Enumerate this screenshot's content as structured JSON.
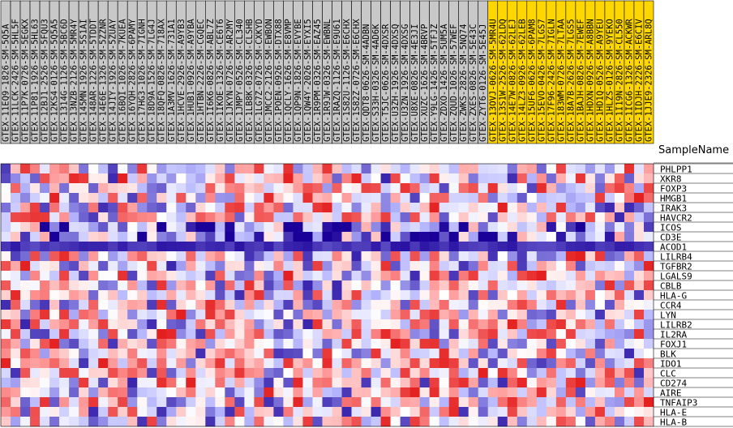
{
  "chart_data": {
    "type": "heatmap",
    "column_axis_label": "SampleName",
    "columns": [
      "GTEX-11EQ9-1826-SM-5Q5A",
      "GTEX-11LCK-2426-SM-5HL5F",
      "GTEX-11P7K-0726-SM-5EGKX",
      "GTEX-11P81-1926-SM-5HL63",
      "GTEX-12BJ1-2526-SM-5FQU3",
      "GTEX-12KS4-0126-SM-5Q5A5",
      "GTEX-1314G-1126-SM-5BC6D",
      "GTEX-13NZB-2126-SM-5MR4Y",
      "GTEX-145MN-1926-SM-5S1AI",
      "GTEX-148AR-1226-SM-5TDDT",
      "GTEX-14E6E-1326-SM-5ZZNR",
      "GTEX-14JIY-1926-SM-5ZUAY",
      "GTEX-16BQI-1026-SM-7KUEA",
      "GTEX-16YQH-2826-SM-6PAMY",
      "GTEX-17HG3-1026-SM-7IGNH",
      "GTEX-18D9A-1526-SM-7LG4J",
      "GTEX-18QFQ-0826-SM-718AX",
      "GTEX-1A3MV-1626-SM-731A1",
      "GTEX-1HCVE-2926-SM-A9YB3",
      "GTEX-1HUB1-0926-SM-A9YBA",
      "GTEX-1HTBN-2226-SM-CGQEC",
      "GTEX-1I6K6-0826-SM-ABL7Z",
      "GTEX-1IKOE-1326-SM-CE6T6",
      "GTEX-1JKYN-0726-SM-AR2MY",
      "GTEX-1JMPY-0526-SM-CL340",
      "GTEX-1LB8K-0326-SM-CLSHB",
      "GTEX-1LG7Z-0726-SM-CXKYD",
      "GTEX-1MCC2-2126-SM-EWBON",
      "GTEX-1POEN-0926-SM-DTX88",
      "GTEX-1QCLY-1626-SM-E8VMP",
      "GTEX-1QP9N-1826-SM-EVYBE",
      "GTEX-1QW4Y-2026-SM-EYXI5",
      "GTEX-1R9PM-0326-SM-EAZ45",
      "GTEX-1R9JW-0326-SM-EWBNL",
      "GTEX-1RAZQ-1126-SM-E9U61",
      "GTEX-1S82U-1126-SM-E6CHX",
      "GTEX-1S82Z-0726-SM-E6CHX",
      "GTEX-QDT8-0626-SM-4ADBN",
      "GTEX-S33H-0326-SM-4AD6K",
      "GTEX-T5JC-0626-SM-4DXSR",
      "GTEX-U3ZH-1926-SM-4DXSQ",
      "GTEX-U3ZN-1926-SM-4DXSG",
      "GTEX-U8XE-0826-SM-4E3JI",
      "GTEX-XUZC-1626-SM-4BRVP",
      "GTEX-Y9LG-1426-SM-5TFJZ",
      "GTEX-ZDXO-1426-SM-5UM5A",
      "GTEX-ZQUD-1026-SM-57WEF",
      "GTEX-ZWKS-2826-SM-5NQ74",
      "GTEX-ZXES-0826-SM-5E43C",
      "GTEX-ZYT6-0126-SM-5E45J",
      "GTEX-13OVJ-0626-SM-5MR4U",
      "GTEX-13S1W-2526-SM-62LDQ",
      "GTEX-14E7W-0826-SM-62LEJ",
      "GTEX-14LZ3-0926-SM-62LEB",
      "GTEX-15UF6-0626-SM-6PAM8",
      "GTEX-15EVO-0426-SM-7LGS7",
      "GTEX-17F96-2426-SM-7IGLN",
      "GTEX-183WM-0726-SM-7LTAA",
      "GTEX-18A7B-2626-SM-7LGS5",
      "GTEX-1BAJH-0826-SM-7EWEF",
      "GTEX-1HDXN-0926-SM-A8BBN",
      "GTEX-1HD1Q-0526-SM-A9YEU",
      "GTEX-1HLZS-0126-SM-9YEKO",
      "GTEX-1I19N-2826-SM-CL550",
      "GTEX-1ICG6-1326-SM-ACKWR",
      "GTEX-1IDJH-2226-SM-E6CIV",
      "GTEX-1JJE9-2326-SM-ARL8Q"
    ],
    "rows": [
      "PHLPP1",
      "XKR8",
      "FOXP3",
      "HMGB1",
      "IRAK3",
      "HAVCR2",
      "ICOS",
      "CD3E",
      "ACOD1",
      "LILRB4",
      "TGFBR2",
      "LGALS9",
      "CBLB",
      "HLA-G",
      "CCR4",
      "LYN",
      "LILRB2",
      "IL2RA",
      "FOXJ1",
      "BLK",
      "IDO1",
      "CLC",
      "CD274",
      "AIRE",
      "TNFAIP3",
      "HLA-E",
      "HLA-B"
    ],
    "highlighted_column_start": 50,
    "color_scale": {
      "low": "#1a0099",
      "mid_low": "#b8b8ff",
      "mid": "#ffffff",
      "mid_high": "#ff9999",
      "high": "#dd0000"
    },
    "highlight_color": "#ffd700",
    "default_column_color": "#c8c8c8",
    "value_range": [
      -2,
      2
    ]
  }
}
